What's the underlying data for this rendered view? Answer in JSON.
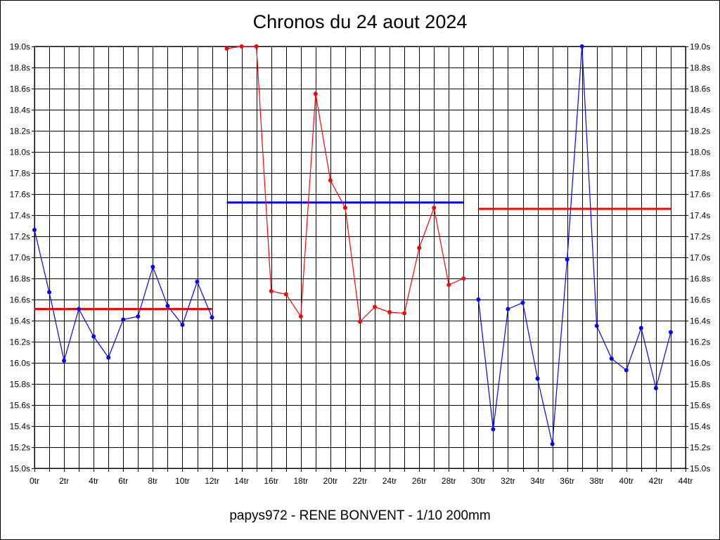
{
  "chart_data": {
    "type": "line",
    "title": "Chronos du 24 aout 2024",
    "footer": "papys972 - RENE BONVENT - 1/10 200mm",
    "xlim": [
      0,
      44
    ],
    "ylim": [
      15.0,
      19.0
    ],
    "x_ticks": [
      0,
      2,
      4,
      6,
      8,
      10,
      12,
      14,
      16,
      18,
      20,
      22,
      24,
      26,
      28,
      30,
      32,
      34,
      36,
      38,
      40,
      42,
      44
    ],
    "x_tick_labels": [
      "0tr",
      "2tr",
      "4tr",
      "6tr",
      "8tr",
      "10tr",
      "12tr",
      "14tr",
      "16tr",
      "18tr",
      "20tr",
      "22tr",
      "24tr",
      "26tr",
      "28tr",
      "30tr",
      "32tr",
      "34tr",
      "36tr",
      "38tr",
      "40tr",
      "42tr",
      "44tr"
    ],
    "y_ticks": [
      15.0,
      15.2,
      15.4,
      15.6,
      15.8,
      16.0,
      16.2,
      16.4,
      16.6,
      16.8,
      17.0,
      17.2,
      17.4,
      17.6,
      17.8,
      18.0,
      18.2,
      18.4,
      18.6,
      18.8,
      19.0
    ],
    "y_tick_labels": [
      "15.0s",
      "15.2s",
      "15.4s",
      "15.6s",
      "15.8s",
      "16.0s",
      "16.2s",
      "16.4s",
      "16.6s",
      "16.8s",
      "17.0s",
      "17.2s",
      "17.4s",
      "17.6s",
      "17.8s",
      "18.0s",
      "18.2s",
      "18.4s",
      "18.6s",
      "18.8s",
      "19.0s"
    ],
    "grid": true,
    "series": [
      {
        "color": "#0000ff",
        "x": [
          0,
          1,
          2,
          3,
          4,
          5,
          6,
          7,
          8,
          9,
          10,
          11,
          12
        ],
        "values": [
          17.26,
          16.67,
          16.02,
          16.51,
          16.25,
          16.05,
          16.41,
          16.44,
          16.91,
          16.54,
          16.36,
          16.77,
          16.43
        ],
        "average": {
          "value": 16.51,
          "color": "#ff0000"
        }
      },
      {
        "color": "#ff0000",
        "x": [
          13,
          14,
          15,
          16,
          17,
          18,
          19,
          20,
          21,
          22,
          23,
          24,
          25,
          26,
          27,
          28,
          29
        ],
        "values": [
          18.98,
          19.0,
          19.0,
          16.68,
          16.65,
          16.44,
          18.55,
          17.73,
          17.47,
          16.39,
          16.53,
          16.48,
          16.47,
          17.09,
          17.47,
          16.74,
          16.8
        ],
        "average": {
          "value": 17.52,
          "color": "#0000ff"
        }
      },
      {
        "color": "#0000ff",
        "x": [
          30,
          31,
          32,
          33,
          34,
          35,
          36,
          37,
          38,
          39,
          40,
          41,
          42,
          43
        ],
        "values": [
          16.6,
          15.37,
          16.51,
          16.57,
          15.85,
          15.23,
          16.98,
          19.0,
          16.35,
          16.04,
          15.93,
          16.33,
          15.76,
          16.29
        ],
        "average": {
          "value": 17.46,
          "color": "#ff0000"
        }
      }
    ]
  }
}
